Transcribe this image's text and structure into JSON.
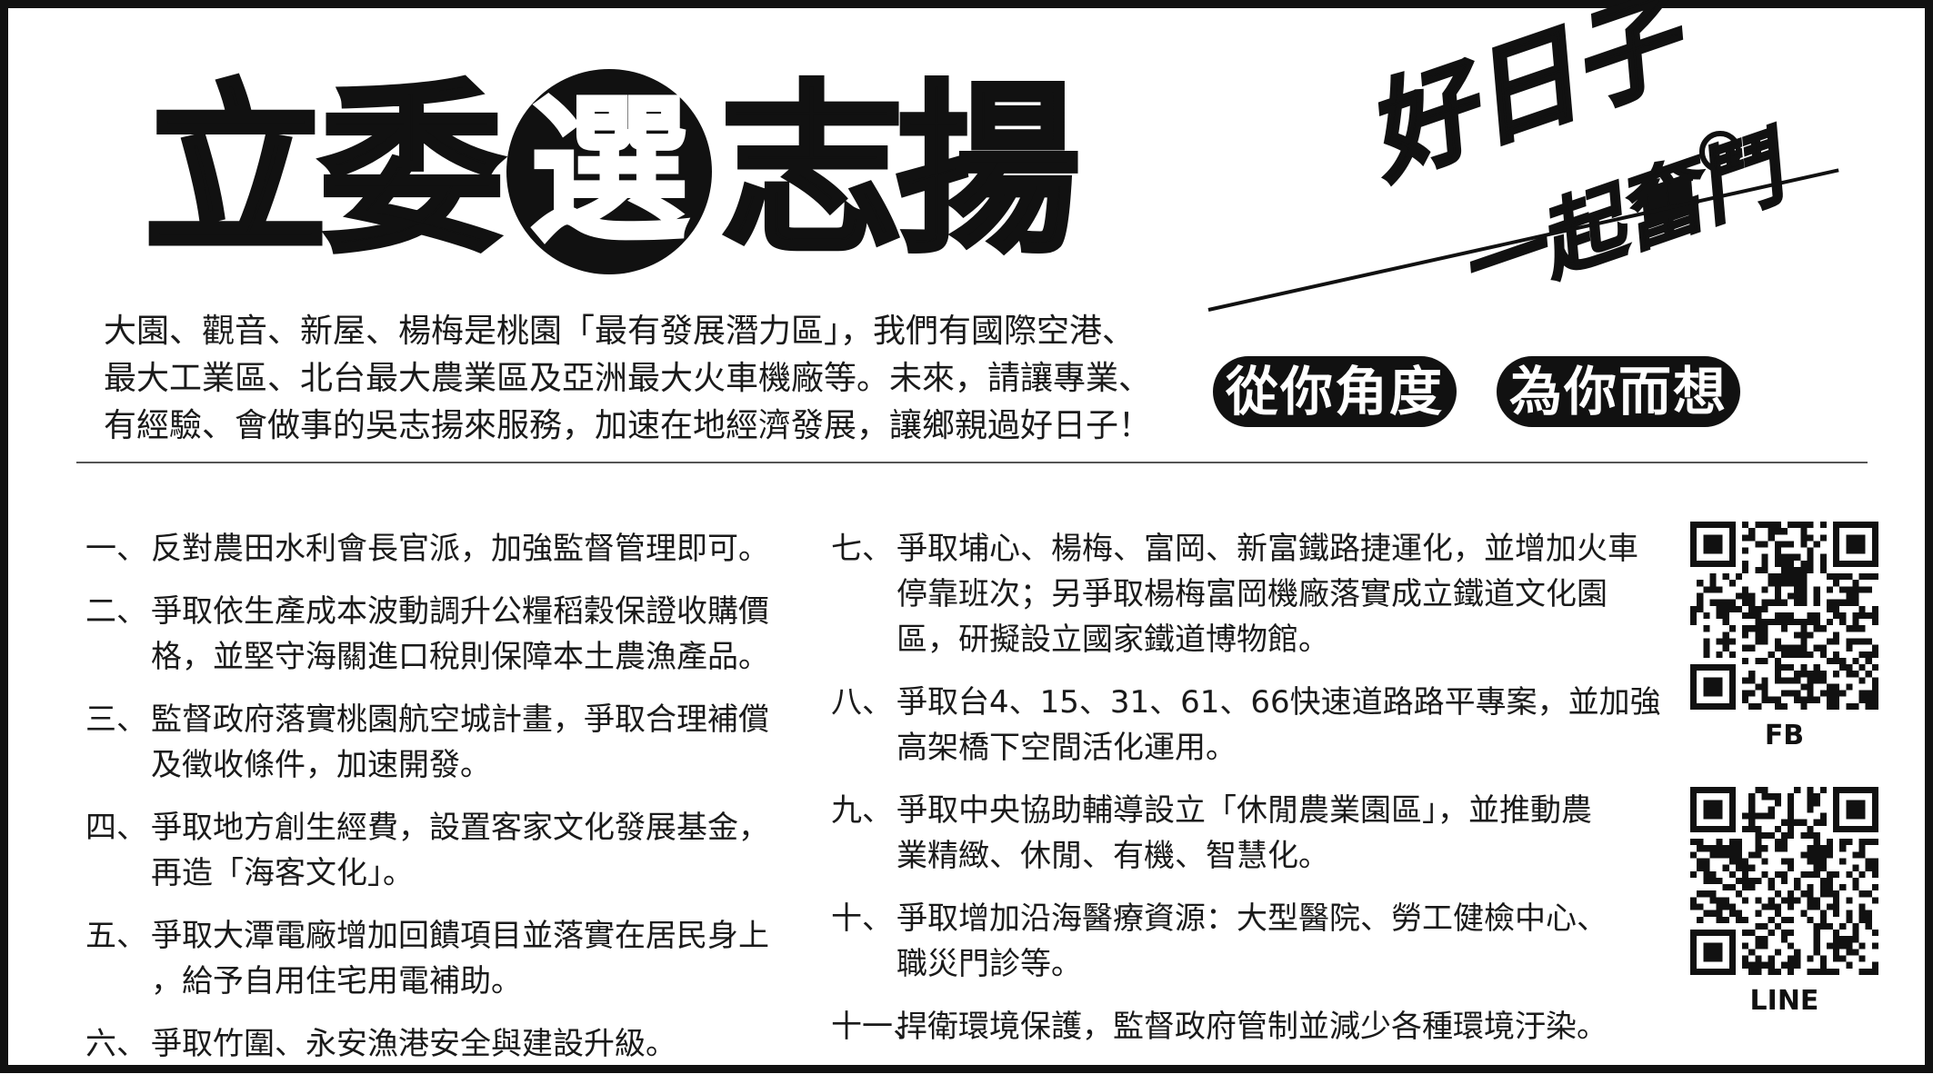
{
  "header": {
    "title_left": "立委",
    "title_circle": "選",
    "title_right": "志揚"
  },
  "slogan": {
    "main": "好日子",
    "sub": "一起奮鬥"
  },
  "tagline": {
    "left": "從你角度",
    "right": "為你而想"
  },
  "intro": {
    "lines": [
      "大園、觀音、新屋、楊梅是桃園「最有發展潛力區」，我們有國際空港、",
      "最大工業區、北台最大農業區及亞洲最大火車機廠等。未來，請讓專業、",
      "有經驗、會做事的吳志揚來服務，加速在地經濟發展，讓鄉親過好日子！"
    ]
  },
  "policies_left": [
    {
      "num": "一、",
      "lines": [
        "反對農田水利會長官派，加強監督管理即可。"
      ]
    },
    {
      "num": "二、",
      "lines": [
        "爭取依生產成本波動調升公糧稻穀保證收購價",
        "格，並堅守海關進口稅則保障本土農漁產品。"
      ]
    },
    {
      "num": "三、",
      "lines": [
        "監督政府落實桃園航空城計畫，爭取合理補償",
        "及徵收條件，加速開發。"
      ]
    },
    {
      "num": "四、",
      "lines": [
        "爭取地方創生經費，設置客家文化發展基金，",
        "再造「海客文化」。"
      ]
    },
    {
      "num": "五、",
      "lines": [
        "爭取大潭電廠增加回饋項目並落實在居民身上",
        "，給予自用住宅用電補助。"
      ]
    },
    {
      "num": "六、",
      "lines": [
        "爭取竹圍、永安漁港安全與建設升級。"
      ]
    }
  ],
  "policies_right": [
    {
      "num": "七、",
      "lines": [
        "爭取埔心、楊梅、富岡、新富鐵路捷運化，並增加火車",
        "停靠班次；另爭取楊梅富岡機廠落實成立鐵道文化園",
        "區，研擬設立國家鐵道博物館。"
      ]
    },
    {
      "num": "八、",
      "lines": [
        "爭取台4、15、31、61、66快速道路路平專案，並加強",
        "高架橋下空間活化運用。"
      ]
    },
    {
      "num": "九、",
      "lines": [
        "爭取中央協助輔導設立「休閒農業園區」，並推動農",
        "業精緻、休閒、有機、智慧化。"
      ]
    },
    {
      "num": "十、",
      "lines": [
        "爭取增加沿海醫療資源：大型醫院、勞工健檢中心、",
        "職災門診等。"
      ]
    },
    {
      "num": "十一、",
      "lines": [
        "捍衛環境保護，監督政府管制並減少各種環境汙染。"
      ]
    }
  ],
  "qr_codes": {
    "fb_label": "FB",
    "line_label": "LINE"
  }
}
